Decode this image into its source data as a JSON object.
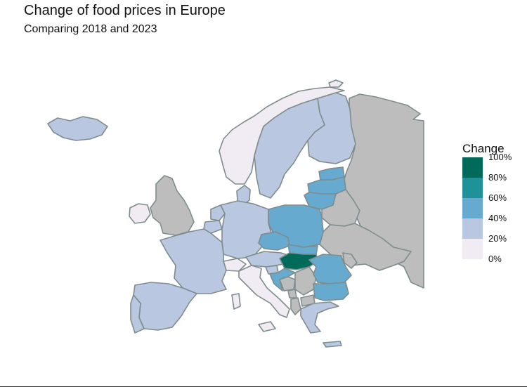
{
  "title": "Change of food prices in Europe",
  "subtitle": "Comparing 2018 and 2023",
  "legend": {
    "title": "Change",
    "bins": [
      {
        "label": "100%",
        "color": "#006b5a"
      },
      {
        "label": "80%",
        "color": "#1f9299"
      },
      {
        "label": "60%",
        "color": "#66aacf"
      },
      {
        "label": "40%",
        "color": "#bac7e1"
      },
      {
        "label": "20%",
        "color": "#f1ebf4"
      },
      {
        "label": "0%",
        "color": ""
      }
    ]
  },
  "colors": {
    "no_data": "#bdbdbd",
    "border": "#7f8c8d",
    "c0_20": "#f1ebf4",
    "c20_40": "#bac7e1",
    "c40_60": "#66aacf",
    "c60_80": "#1f9299",
    "c80_100": "#006b5a"
  },
  "chart_data": {
    "type": "choropleth",
    "region": "Europe",
    "value_name": "Change",
    "unit": "%",
    "color_scale_breaks": [
      0,
      20,
      40,
      60,
      80,
      100
    ],
    "countries": [
      {
        "name": "Hungary",
        "band": "80-100"
      },
      {
        "name": "Poland",
        "band": "40-60"
      },
      {
        "name": "Czechia",
        "band": "40-60"
      },
      {
        "name": "Slovakia",
        "band": "40-60"
      },
      {
        "name": "Romania",
        "band": "40-60"
      },
      {
        "name": "Bulgaria",
        "band": "40-60"
      },
      {
        "name": "Estonia",
        "band": "40-60"
      },
      {
        "name": "Latvia",
        "band": "40-60"
      },
      {
        "name": "Lithuania",
        "band": "40-60"
      },
      {
        "name": "Croatia",
        "band": "40-60"
      },
      {
        "name": "Iceland",
        "band": "20-40"
      },
      {
        "name": "Sweden",
        "band": "20-40"
      },
      {
        "name": "Finland",
        "band": "20-40"
      },
      {
        "name": "Denmark",
        "band": "20-40"
      },
      {
        "name": "Germany",
        "band": "20-40"
      },
      {
        "name": "Netherlands",
        "band": "20-40"
      },
      {
        "name": "Belgium",
        "band": "20-40"
      },
      {
        "name": "France",
        "band": "20-40"
      },
      {
        "name": "Spain",
        "band": "20-40"
      },
      {
        "name": "Portugal",
        "band": "20-40"
      },
      {
        "name": "Austria",
        "band": "20-40"
      },
      {
        "name": "Slovenia",
        "band": "20-40"
      },
      {
        "name": "Greece",
        "band": "20-40"
      },
      {
        "name": "Norway",
        "band": "0-20"
      },
      {
        "name": "Ireland",
        "band": "0-20"
      },
      {
        "name": "Switzerland",
        "band": "0-20"
      },
      {
        "name": "Italy",
        "band": "0-20"
      },
      {
        "name": "Svalbard",
        "band": "0-20"
      },
      {
        "name": "United Kingdom",
        "band": "no data"
      },
      {
        "name": "Russia",
        "band": "no data"
      },
      {
        "name": "Belarus",
        "band": "no data"
      },
      {
        "name": "Ukraine",
        "band": "no data"
      },
      {
        "name": "Moldova",
        "band": "no data"
      },
      {
        "name": "Serbia",
        "band": "no data"
      },
      {
        "name": "Bosnia and Herzegovina",
        "band": "no data"
      },
      {
        "name": "Montenegro",
        "band": "no data"
      },
      {
        "name": "Albania",
        "band": "no data"
      },
      {
        "name": "North Macedonia",
        "band": "no data"
      },
      {
        "name": "Kosovo",
        "band": "no data"
      }
    ]
  }
}
